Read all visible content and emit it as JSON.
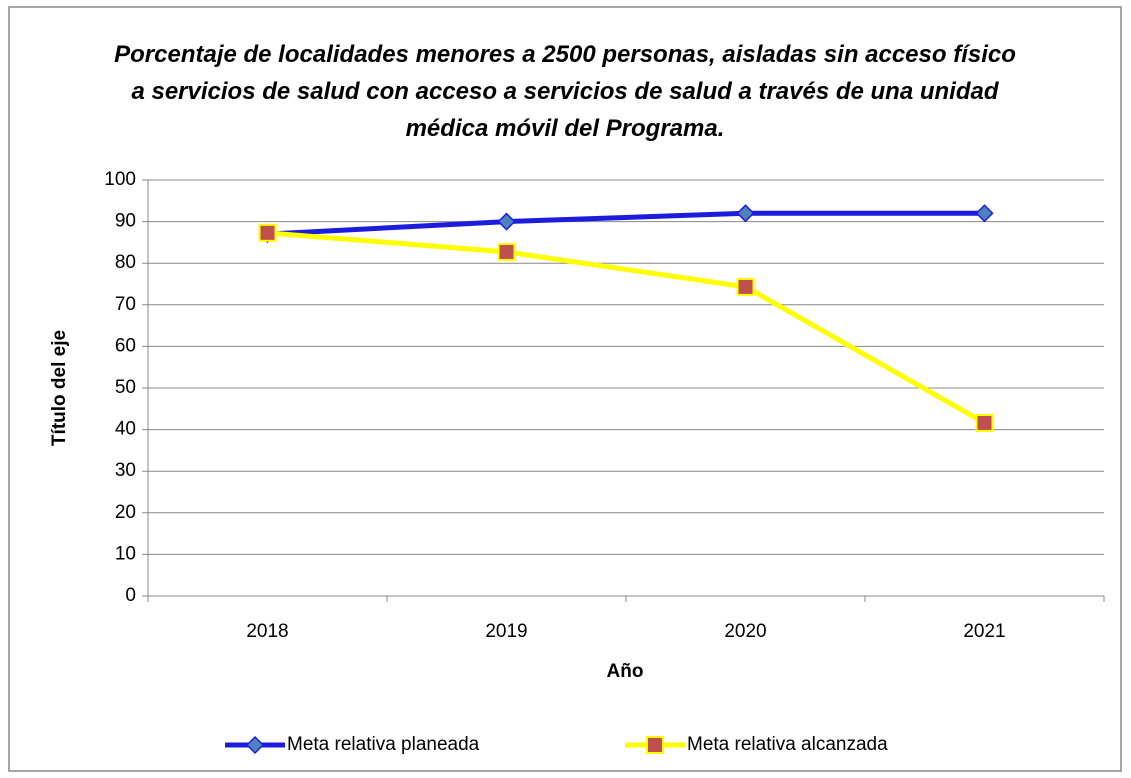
{
  "chart_data": {
    "type": "line",
    "title": "Porcentaje de localidades menores a 2500 personas, aisladas sin acceso físico a servicios de salud con acceso a servicios de salud a través de una unidad médica móvil del Programa.",
    "xlabel": "Año",
    "ylabel": "Título del eje",
    "categories": [
      "2018",
      "2019",
      "2020",
      "2021"
    ],
    "series": [
      {
        "name": "Meta relativa planeada",
        "color": "#1c1cdc",
        "marker_color": "#4f81bd",
        "values": [
          87,
          90,
          92,
          92
        ]
      },
      {
        "name": "Meta relativa alcanzada",
        "color": "#ffff00",
        "marker_color": "#c0504d",
        "values": [
          87.3,
          82.7,
          74.3,
          41.6
        ]
      }
    ],
    "ylim": [
      0,
      100
    ],
    "yticks": [
      0,
      10,
      20,
      30,
      40,
      50,
      60,
      70,
      80,
      90,
      100
    ],
    "grid": true,
    "legend": "bottom"
  }
}
